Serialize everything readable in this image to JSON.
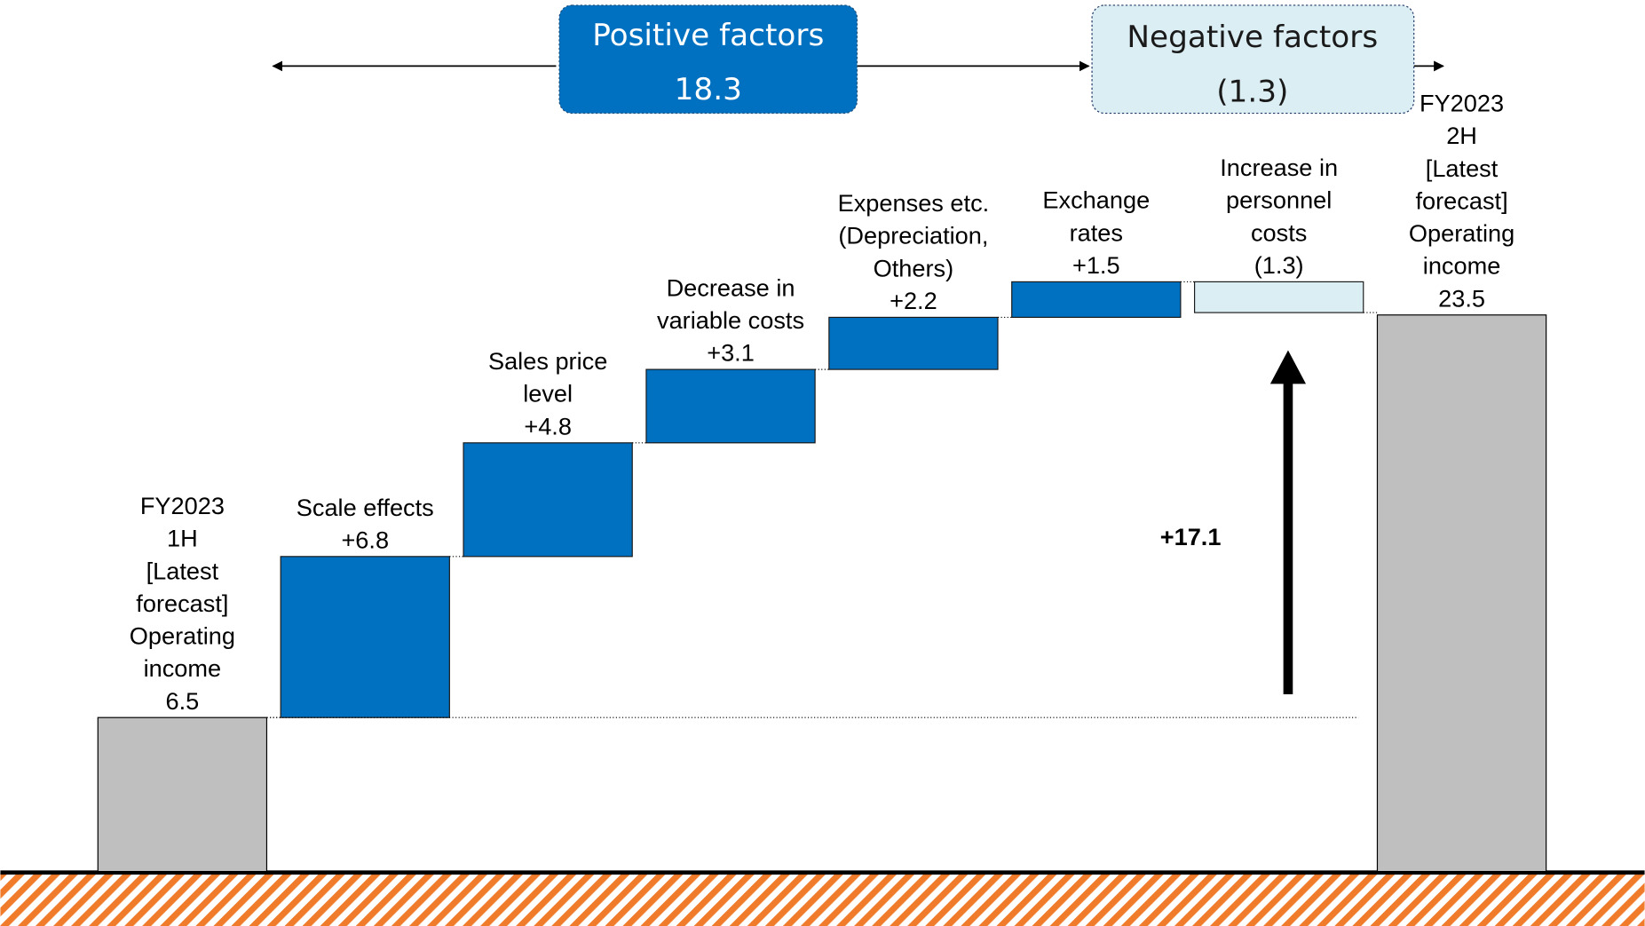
{
  "chart_data": {
    "type": "waterfall",
    "categories": [
      "FY2023\n1H\n[Latest\nforecast]\nOperating\nincome",
      "Scale effects",
      "Sales price\nlevel",
      "Decrease in\nvariable costs",
      "Expenses etc.\n(Depreciation,\nOthers)",
      "Exchange\nrates",
      "Increase in\npersonnel\ncosts",
      "FY2023\n2H\n[Latest\nforecast]\nOperating\nincome"
    ],
    "values": [
      6.5,
      6.8,
      4.8,
      3.1,
      2.2,
      1.5,
      -1.3,
      23.5
    ],
    "value_labels": [
      "6.5",
      "+6.8",
      "+4.8",
      "+3.1",
      "+2.2",
      "+1.5",
      "(1.3)",
      "23.5"
    ],
    "kinds": [
      "total",
      "delta",
      "delta",
      "delta",
      "delta",
      "delta",
      "delta",
      "total"
    ],
    "colors": {
      "total": "#bfbfbf",
      "positive": "#0070c0",
      "negative": "#dbeef4"
    },
    "ylim": [
      0,
      36.8
    ],
    "positive_factors": {
      "label": "Positive factors",
      "value": 18.3,
      "value_label": "18.3"
    },
    "negative_factors": {
      "label": "Negative factors",
      "value": -1.3,
      "value_label": "(1.3)"
    },
    "annotation": "+17.1"
  }
}
